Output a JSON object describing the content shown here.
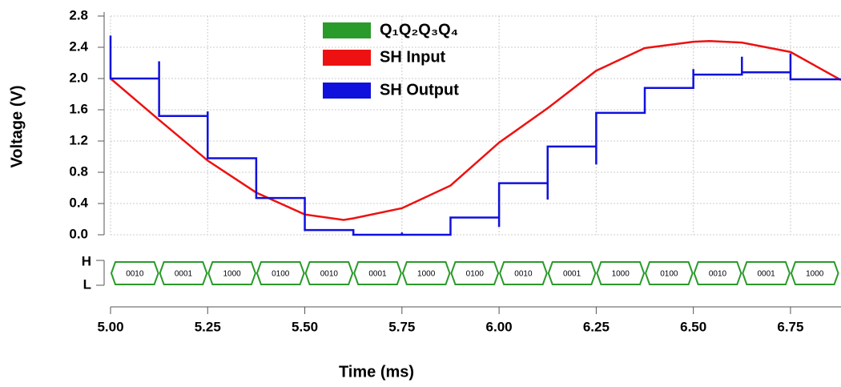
{
  "chart_data": {
    "type": "line",
    "xlabel": "Time (ms)",
    "ylabel": "Voltage (V)",
    "xlim": [
      5,
      6.88
    ],
    "xticks": [
      {
        "value": 5,
        "label": "5.00"
      },
      5.25,
      {
        "value": 5.5,
        "label": "5.50"
      },
      5.75,
      {
        "value": 6,
        "label": "6.00"
      },
      6.25,
      {
        "value": 6.5,
        "label": "6.50"
      },
      6.75
    ],
    "ylim": [
      0,
      2.8
    ],
    "yticks": [
      {
        "value": 0,
        "label": "0.0"
      },
      0.4,
      0.8,
      1.2,
      1.6,
      {
        "value": 2,
        "label": "2.0"
      },
      2.4,
      2.8
    ],
    "grid": true,
    "series": [
      {
        "name": "SH Input",
        "color": "#ee1111",
        "x": [
          5,
          5.125,
          5.25,
          5.375,
          5.5,
          5.6,
          5.625,
          5.75,
          5.875,
          6,
          6.125,
          6.25,
          6.375,
          6.5,
          6.54,
          6.625,
          6.75,
          6.88
        ],
        "values": [
          2.0,
          1.47,
          0.95,
          0.54,
          0.26,
          0.19,
          0.21,
          0.34,
          0.63,
          1.18,
          1.62,
          2.1,
          2.39,
          2.47,
          2.48,
          2.46,
          2.34,
          1.98
        ]
      },
      {
        "name": "SH Output",
        "color": "#1010dd",
        "x": [
          5,
          5,
          5.125,
          5.125,
          5.125,
          5.25,
          5.25,
          5.25,
          5.375,
          5.375,
          5.5,
          5.5,
          5.625,
          5.625,
          5.75,
          5.75,
          5.75,
          5.875,
          5.875,
          6,
          6,
          6,
          6.125,
          6.125,
          6.125,
          6.25,
          6.25,
          6.25,
          6.375,
          6.375,
          6.5,
          6.5,
          6.5,
          6.625,
          6.625,
          6.625,
          6.75,
          6.75,
          6.75,
          6.88
        ],
        "values": [
          2.55,
          2.0,
          2.0,
          2.22,
          1.52,
          1.52,
          1.58,
          0.98,
          0.98,
          0.47,
          0.47,
          0.06,
          0.06,
          0.0,
          0.0,
          0.03,
          0.0,
          0.0,
          0.22,
          0.22,
          0.1,
          0.66,
          0.66,
          0.45,
          1.13,
          1.13,
          0.9,
          1.56,
          1.56,
          1.88,
          1.88,
          2.12,
          2.05,
          2.05,
          2.28,
          2.08,
          2.08,
          2.32,
          1.99,
          1.99
        ]
      }
    ],
    "bus": {
      "name": "Q₁Q₂Q₃Q₄",
      "color": "#2a9a2a",
      "high_label": "H",
      "low_label": "L",
      "x": [
        5,
        5.125,
        5.25,
        5.375,
        5.5,
        5.625,
        5.75,
        5.875,
        6,
        6.125,
        6.25,
        6.375,
        6.5,
        6.625,
        6.75,
        6.875
      ],
      "labels": [
        "0010",
        "0001",
        "1000",
        "0100",
        "0010",
        "0001",
        "1000",
        "0100",
        "0010",
        "0001",
        "1000",
        "0100",
        "0010",
        "0001",
        "1000"
      ]
    }
  }
}
